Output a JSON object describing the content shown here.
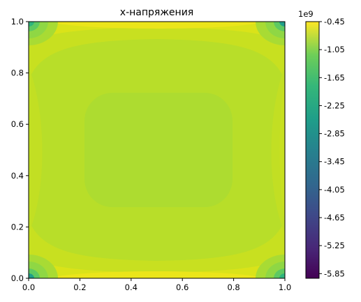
{
  "chart_data": {
    "type": "contourf",
    "title": "x-напряжения",
    "xlabel": "",
    "ylabel": "",
    "xlim": [
      0.0,
      1.0
    ],
    "ylim": [
      0.0,
      1.0
    ],
    "x_ticks": [
      "0.0",
      "0.2",
      "0.4",
      "0.6",
      "0.8",
      "1.0"
    ],
    "y_ticks": [
      "0.0",
      "0.2",
      "0.4",
      "0.6",
      "0.8",
      "1.0"
    ],
    "colormap": "viridis",
    "colorbar": {
      "offset_label": "1e9",
      "range": [
        -5.95,
        -0.45
      ],
      "ticks": [
        "-0.45",
        "-1.05",
        "-1.65",
        "-2.25",
        "-2.85",
        "-3.45",
        "-4.05",
        "-4.65",
        "-5.25",
        "-5.85"
      ]
    },
    "field": {
      "units_scale": "1e9",
      "center_value": -1.5,
      "edge_bands_value": -0.75,
      "corner_value": -2.6,
      "symmetry": "symmetric about x=0.5 and y=0.5"
    },
    "grid": false,
    "legend": "none"
  }
}
